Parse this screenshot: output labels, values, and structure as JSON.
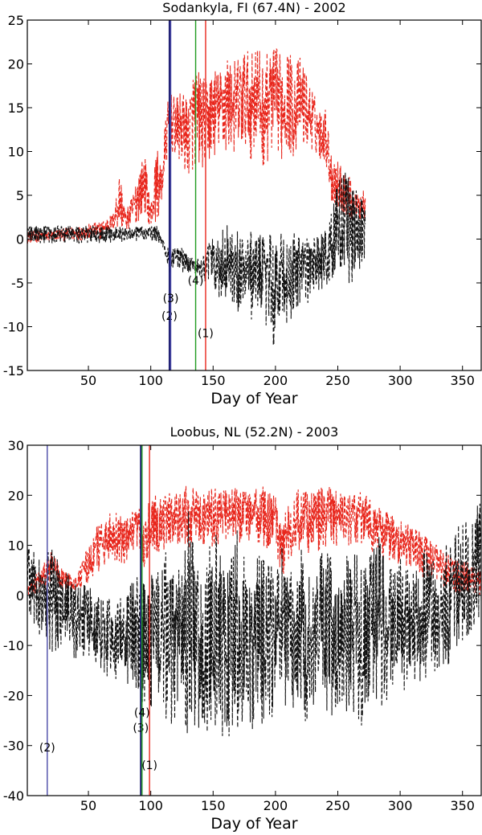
{
  "chart_data": [
    {
      "type": "line",
      "title": "Sodankyla, FI (67.4N) - 2002",
      "xlabel": "Day of Year",
      "ylabel": "",
      "xlim": [
        1,
        365
      ],
      "ylim": [
        -15,
        25
      ],
      "xticks": [
        50,
        100,
        150,
        200,
        250,
        300,
        350
      ],
      "yticks": [
        -15,
        -10,
        -5,
        0,
        5,
        10,
        15,
        20,
        25
      ],
      "colors": {
        "red": "#e8261c",
        "black": "#111111",
        "blue": "#4b4ba8",
        "green": "#1f9a1f",
        "navy": "#1a1a70"
      },
      "series": [
        {
          "color": "red",
          "x": [
            1,
            20,
            40,
            60,
            70,
            75,
            80,
            85,
            90,
            95,
            100,
            105,
            108,
            110,
            112,
            115,
            120,
            125,
            130,
            135,
            140,
            145,
            150,
            155,
            160,
            165,
            170,
            175,
            180,
            185,
            190,
            195,
            200,
            205,
            210,
            215,
            220,
            225,
            230,
            235,
            240,
            245,
            250,
            255,
            260,
            265,
            270,
            272
          ],
          "lo": [
            -0.5,
            -0.3,
            -0.2,
            0,
            1,
            1,
            1,
            1,
            2,
            3,
            1,
            2,
            3,
            5,
            8,
            10,
            9,
            8,
            7,
            8,
            8,
            8,
            9,
            10,
            9,
            10,
            9,
            10,
            9,
            10,
            8,
            9,
            10,
            9,
            10,
            9,
            11,
            10,
            10,
            9,
            9,
            4,
            3,
            3,
            2,
            2,
            2,
            2
          ],
          "hi": [
            1,
            1,
            1.5,
            2,
            3,
            8,
            3,
            5,
            8,
            10,
            4,
            11,
            8,
            11,
            14,
            17,
            16,
            17,
            16,
            20,
            19,
            18,
            20,
            19,
            22,
            20,
            21,
            22,
            21,
            23,
            20,
            22,
            22,
            21,
            22,
            20,
            21,
            19,
            17,
            15,
            15,
            10,
            9,
            8,
            7,
            5,
            6,
            6
          ]
        },
        {
          "color": "black",
          "x": [
            1,
            20,
            40,
            60,
            80,
            95,
            105,
            110,
            112,
            115,
            120,
            125,
            130,
            135,
            140,
            145,
            150,
            155,
            160,
            165,
            170,
            175,
            180,
            185,
            190,
            195,
            200,
            205,
            210,
            215,
            220,
            225,
            230,
            235,
            240,
            245,
            250,
            255,
            260,
            265,
            270,
            272
          ],
          "lo": [
            -0.5,
            -0.5,
            -0.5,
            -0.5,
            -0.3,
            -0.3,
            -0.3,
            -1,
            -2,
            -4,
            -3,
            -4,
            -4,
            -4,
            -5,
            -6,
            -5,
            -8,
            -7,
            -8,
            -9,
            -7,
            -10,
            -8,
            -9,
            -11,
            -13,
            -9,
            -10,
            -9,
            -8,
            -8,
            -6,
            -6,
            -6,
            -5,
            -4,
            -3,
            -6,
            -4,
            -5,
            -4
          ],
          "hi": [
            1.5,
            1.5,
            1.5,
            1.5,
            1.5,
            1.5,
            1.5,
            0,
            -1,
            -1,
            -1,
            -1,
            -2,
            -2,
            -2,
            -1,
            1,
            0,
            2,
            1,
            1,
            0,
            1,
            0,
            1,
            1,
            0,
            1,
            0,
            1,
            0,
            1,
            0,
            1,
            1,
            3,
            7,
            8,
            7,
            6,
            5,
            4
          ]
        }
      ],
      "vlines": [
        {
          "x": 115,
          "color": "navy",
          "label": "(2)",
          "label_y": -9.2
        },
        {
          "x": 116,
          "color": "blue",
          "label": "(3)",
          "label_y": -7.2
        },
        {
          "x": 136,
          "color": "green",
          "label": "(4)",
          "label_y": -5.2
        },
        {
          "x": 144,
          "color": "red",
          "label": "(1)",
          "label_y": -11.2
        }
      ]
    },
    {
      "type": "line",
      "title": "Loobus, NL (52.2N) - 2003",
      "xlabel": "Day of Year",
      "ylabel": "",
      "xlim": [
        1,
        365
      ],
      "ylim": [
        -40,
        30
      ],
      "xticks": [
        50,
        100,
        150,
        200,
        250,
        300,
        350
      ],
      "yticks": [
        -40,
        -30,
        -20,
        -10,
        0,
        10,
        20,
        30
      ],
      "colors": {
        "red": "#e8261c",
        "black": "#111111",
        "blue": "#4b4ba8",
        "green": "#1f9a1f",
        "navy": "#1a1a70"
      },
      "series": [
        {
          "color": "red",
          "x": [
            1,
            10,
            20,
            30,
            40,
            50,
            60,
            70,
            80,
            90,
            95,
            100,
            110,
            120,
            130,
            140,
            150,
            160,
            170,
            180,
            190,
            200,
            205,
            210,
            220,
            230,
            240,
            250,
            260,
            270,
            280,
            290,
            300,
            310,
            320,
            330,
            340,
            350,
            360,
            365
          ],
          "lo": [
            0,
            0,
            2,
            1,
            1,
            2,
            5,
            7,
            6,
            7,
            5,
            8,
            9,
            10,
            9,
            10,
            9,
            11,
            10,
            11,
            9,
            8,
            3,
            6,
            9,
            8,
            9,
            10,
            9,
            10,
            8,
            7,
            6,
            5,
            3,
            2,
            1,
            0,
            0,
            0
          ],
          "hi": [
            2,
            5,
            9,
            5,
            4,
            10,
            16,
            17,
            15,
            18,
            14,
            21,
            20,
            21,
            22,
            21,
            22,
            21,
            22,
            21,
            22,
            20,
            15,
            19,
            22,
            21,
            22,
            21,
            20,
            21,
            18,
            17,
            15,
            14,
            12,
            10,
            8,
            7,
            6,
            5
          ]
        },
        {
          "color": "black",
          "x": [
            1,
            10,
            20,
            30,
            40,
            50,
            60,
            70,
            80,
            90,
            95,
            100,
            110,
            120,
            130,
            140,
            150,
            160,
            170,
            180,
            190,
            200,
            205,
            210,
            220,
            230,
            240,
            250,
            260,
            270,
            280,
            290,
            300,
            310,
            320,
            330,
            340,
            350,
            360,
            365
          ],
          "lo": [
            -3,
            -8,
            -12,
            -10,
            -13,
            -12,
            -15,
            -18,
            -18,
            -22,
            -23,
            -25,
            -25,
            -27,
            -28,
            -27,
            -28,
            -29,
            -28,
            -30,
            -29,
            -25,
            -22,
            -24,
            -26,
            -25,
            -24,
            -25,
            -24,
            -27,
            -23,
            -22,
            -20,
            -18,
            -17,
            -15,
            -14,
            -12,
            -9,
            -8
          ],
          "hi": [
            10,
            8,
            10,
            5,
            3,
            2,
            0,
            -1,
            1,
            5,
            3,
            4,
            10,
            3,
            18,
            2,
            15,
            3,
            14,
            2,
            12,
            3,
            10,
            4,
            10,
            2,
            12,
            2,
            13,
            5,
            15,
            5,
            8,
            5,
            10,
            8,
            12,
            15,
            18,
            20
          ]
        }
      ],
      "vlines": [
        {
          "x": 17,
          "color": "blue",
          "label": "(2)",
          "label_y": -31.2
        },
        {
          "x": 92,
          "color": "navy",
          "label": "(3)",
          "label_y": -27.2
        },
        {
          "x": 93,
          "color": "green",
          "label": "(4)",
          "label_y": -24.2
        },
        {
          "x": 99,
          "color": "red",
          "label": "(1)",
          "label_y": -34.7
        }
      ]
    }
  ]
}
